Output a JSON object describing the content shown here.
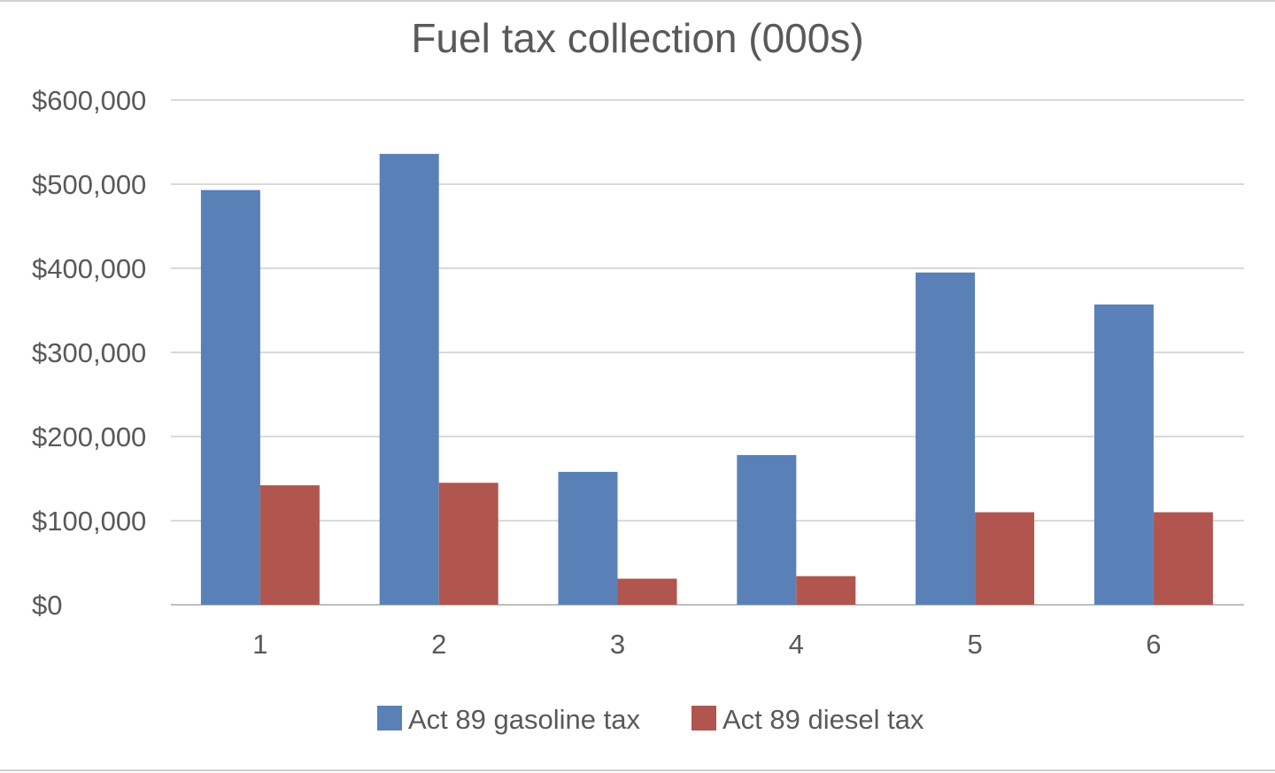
{
  "chart_data": {
    "type": "bar",
    "title": "Fuel tax collection (000s)",
    "xlabel": "",
    "ylabel": "",
    "categories": [
      "1",
      "2",
      "3",
      "4",
      "5",
      "6"
    ],
    "series": [
      {
        "name": "Act 89 gasoline tax",
        "color": "#5a80b8",
        "values": [
          493000,
          536000,
          158000,
          178000,
          395000,
          357000
        ]
      },
      {
        "name": "Act 89 diesel tax",
        "color": "#b0564f",
        "values": [
          142000,
          145000,
          31000,
          34000,
          110000,
          110000
        ]
      }
    ],
    "ylim": [
      0,
      600000
    ],
    "yticks": [
      0,
      100000,
      200000,
      300000,
      400000,
      500000,
      600000
    ],
    "ytick_labels": [
      "$0",
      "$100,000",
      "$200,000",
      "$300,000",
      "$400,000",
      "$500,000",
      "$600,000"
    ],
    "grid": true,
    "gridColor": "#d9d9d9",
    "legend_position": "bottom"
  }
}
